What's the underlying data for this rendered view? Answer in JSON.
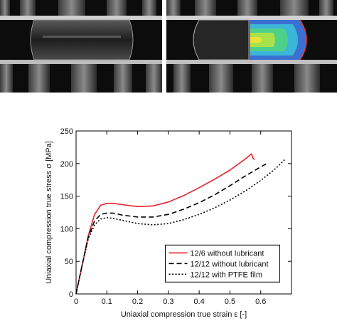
{
  "photos": {
    "left_caption": "",
    "right_caption": ""
  },
  "chart_data": {
    "type": "line",
    "xlabel": "Uniaxial compression true strain  ε  [-]",
    "ylabel": "Uniaxial compression true stress  σ [MPa]",
    "xlim": [
      0,
      0.7
    ],
    "ylim": [
      0,
      250
    ],
    "xticks": [
      0,
      0.1,
      0.2,
      0.3,
      0.4,
      0.5,
      0.6
    ],
    "xtick_labels": [
      "0",
      "0.1",
      "0.2",
      "0.3",
      "0.4",
      "0.5",
      "0.6"
    ],
    "yticks": [
      0,
      50,
      100,
      150,
      200,
      250
    ],
    "ytick_labels": [
      "0",
      "50",
      "100",
      "150",
      "200",
      "250"
    ],
    "grid": false,
    "legend_position": "bottom-right",
    "series": [
      {
        "name": "12/6 without lubricant",
        "color": "#e8232a",
        "dash": "solid",
        "x": [
          0,
          0.02,
          0.04,
          0.06,
          0.08,
          0.1,
          0.12,
          0.15,
          0.2,
          0.25,
          0.3,
          0.35,
          0.4,
          0.45,
          0.5,
          0.55,
          0.57,
          0.575,
          0.58
        ],
        "y": [
          0,
          45,
          90,
          122,
          136,
          139,
          139,
          137,
          134,
          135,
          141,
          151,
          163,
          176,
          190,
          207,
          215,
          208,
          206
        ]
      },
      {
        "name": "12/12 without lubricant",
        "color": "#000000",
        "dash": "dashed",
        "x": [
          0,
          0.02,
          0.04,
          0.06,
          0.08,
          0.1,
          0.12,
          0.15,
          0.2,
          0.25,
          0.3,
          0.35,
          0.4,
          0.45,
          0.5,
          0.55,
          0.6,
          0.62
        ],
        "y": [
          0,
          45,
          88,
          112,
          122,
          124,
          124,
          121,
          118,
          118,
          122,
          130,
          140,
          152,
          166,
          181,
          195,
          200
        ]
      },
      {
        "name": "12/12 with PTFE film",
        "color": "#000000",
        "dash": "dotted",
        "x": [
          0,
          0.02,
          0.04,
          0.06,
          0.08,
          0.1,
          0.12,
          0.15,
          0.2,
          0.25,
          0.3,
          0.35,
          0.4,
          0.45,
          0.5,
          0.55,
          0.6,
          0.65,
          0.68
        ],
        "y": [
          0,
          45,
          85,
          106,
          115,
          117,
          116,
          113,
          108,
          106,
          108,
          114,
          122,
          132,
          144,
          158,
          174,
          193,
          207
        ]
      }
    ]
  }
}
